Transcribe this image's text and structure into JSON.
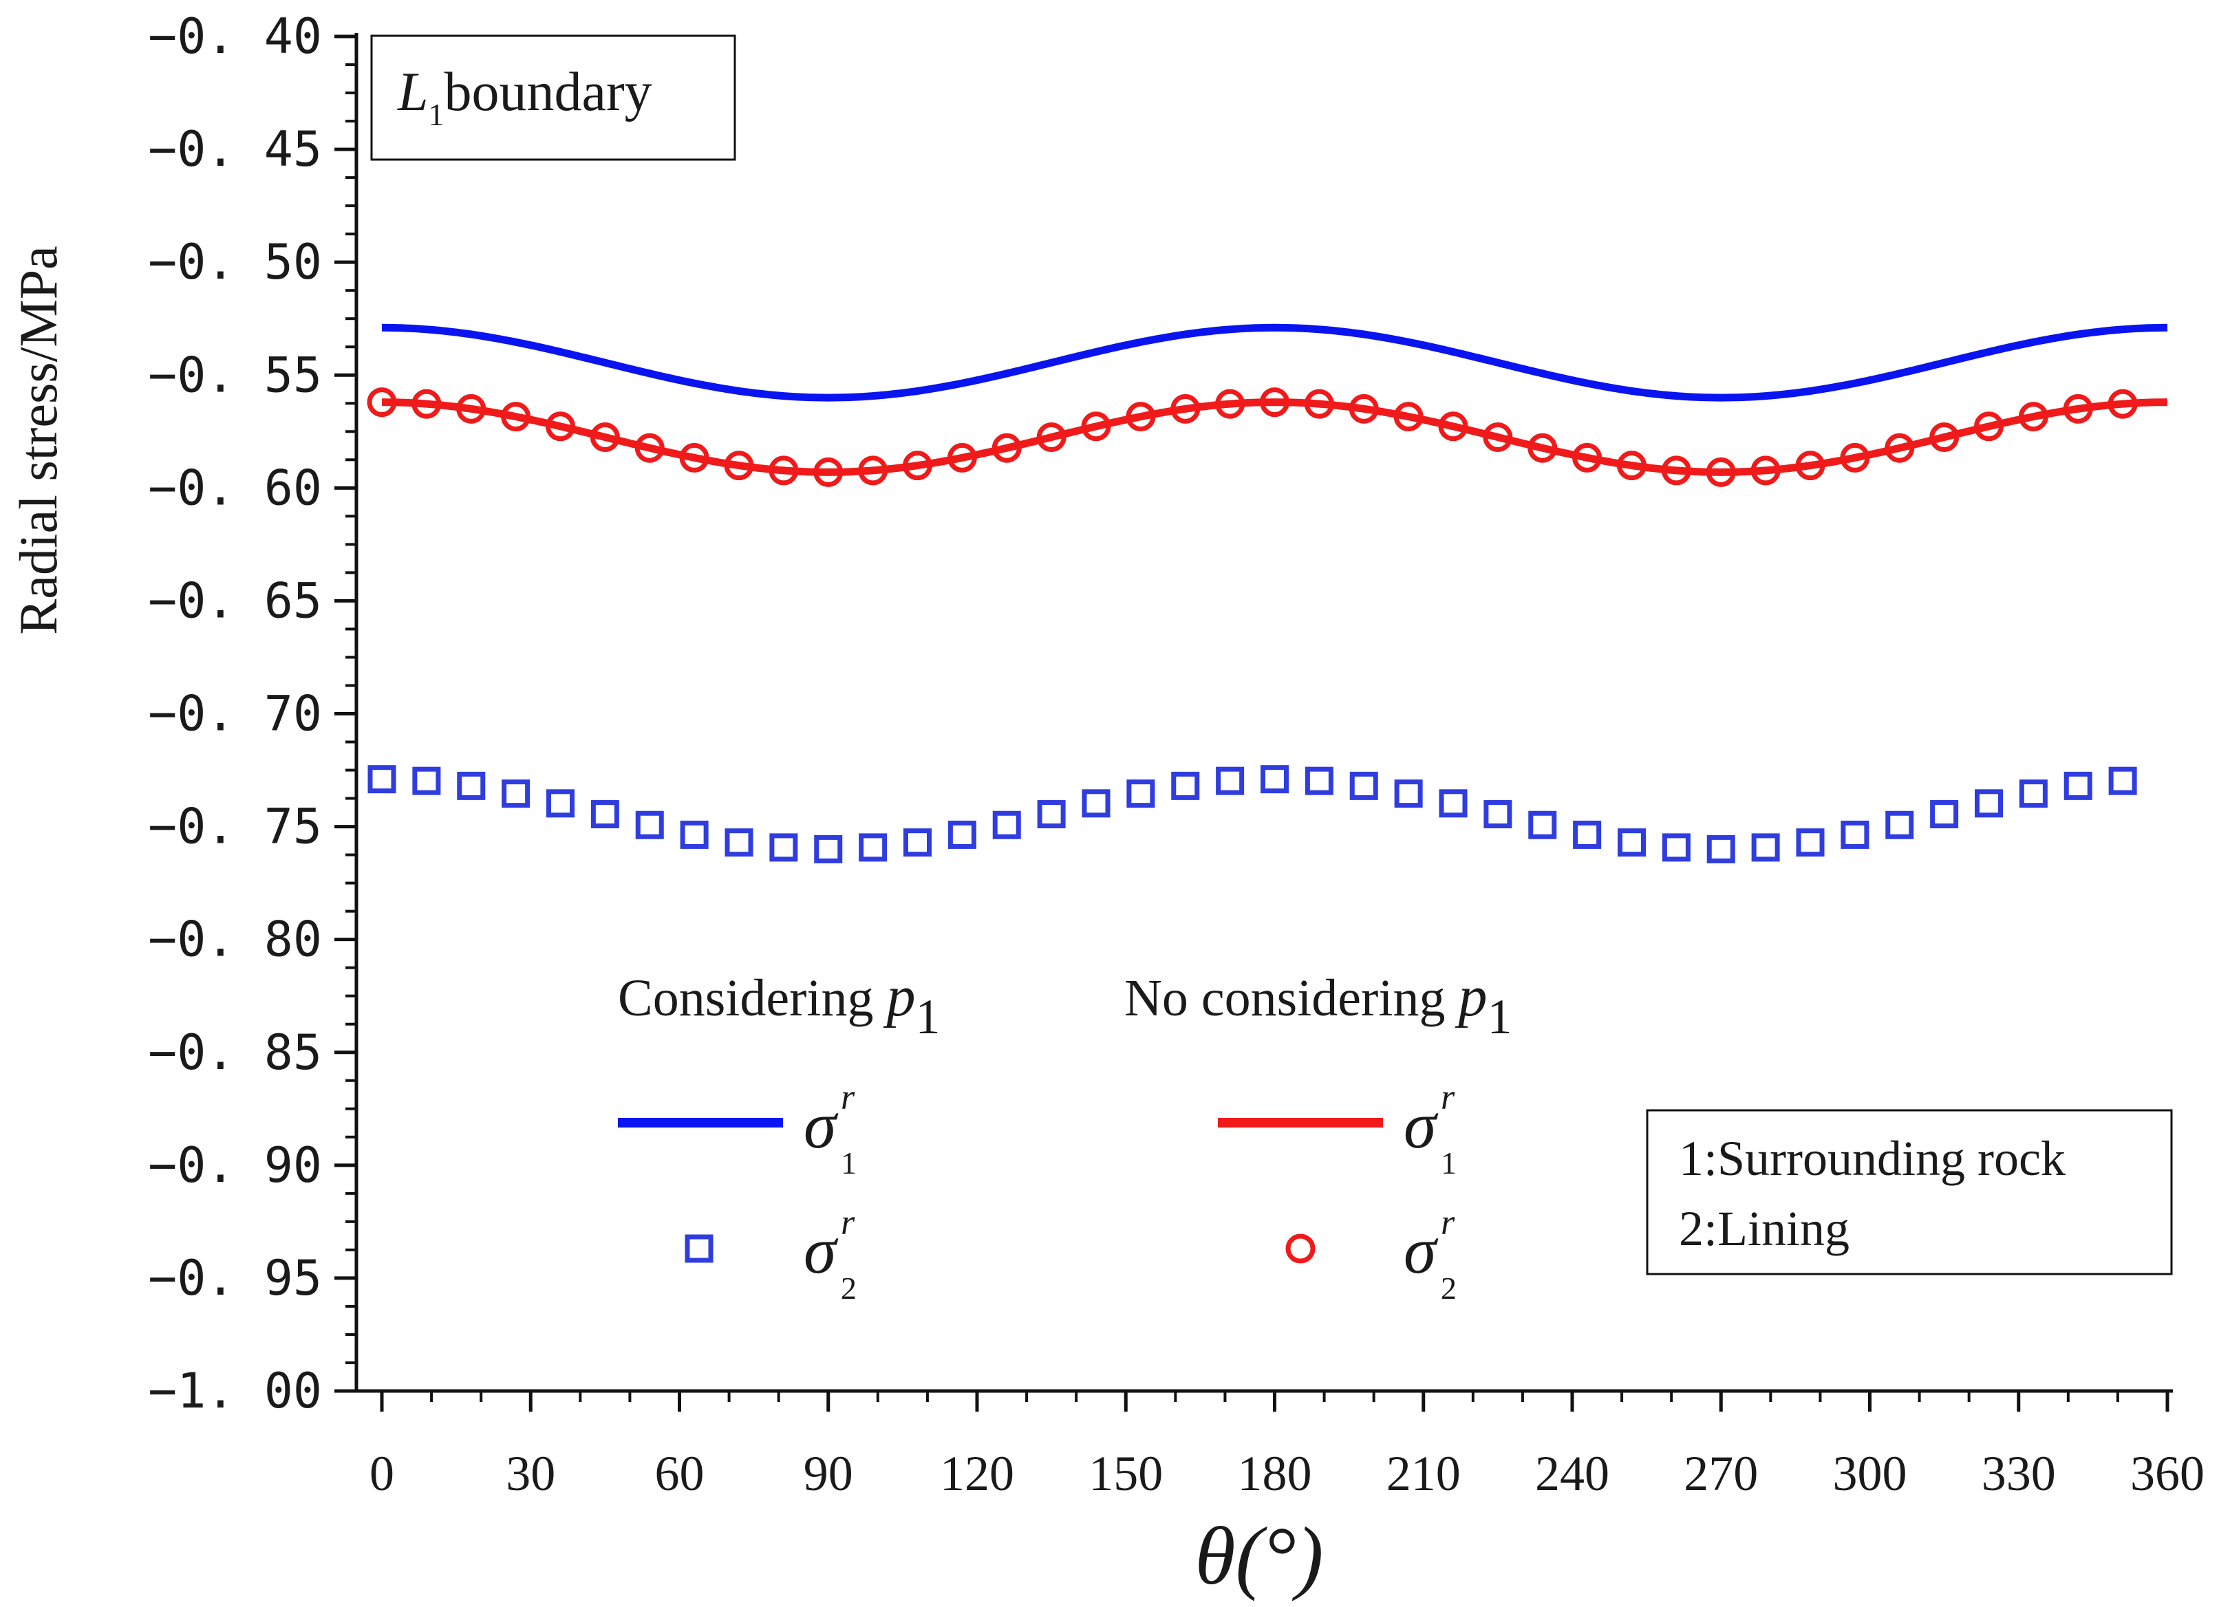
{
  "chart_data": {
    "type": "line",
    "title": "",
    "xlabel": "θ(°)",
    "ylabel": "Radial stress/MPa",
    "xlim": [
      0,
      360
    ],
    "ylim": [
      -1.0,
      -0.4
    ],
    "xticks": [
      0,
      30,
      60,
      90,
      120,
      150,
      180,
      210,
      240,
      270,
      300,
      330,
      360
    ],
    "xtick_labels": [
      "0",
      "30",
      "60",
      "90",
      "120",
      "150",
      "180",
      "210",
      "240",
      "270",
      "300",
      "330",
      "360"
    ],
    "yticks": [
      -0.4,
      -0.45,
      -0.5,
      -0.55,
      -0.6,
      -0.65,
      -0.7,
      -0.75,
      -0.8,
      -0.85,
      -0.9,
      -0.95,
      -1.0
    ],
    "ytick_labels": [
      "−0. 40",
      "−0. 45",
      "−0. 50",
      "−0. 55",
      "−0. 60",
      "−0. 65",
      "−0. 70",
      "−0. 75",
      "−0. 80",
      "−0. 85",
      "−0. 90",
      "−0. 95",
      "−1. 00"
    ],
    "annotation": {
      "italic": "L",
      "sub": "1",
      "text": "boundary"
    },
    "legend": {
      "group1_label": "Considering ",
      "group2_label": "No considering ",
      "param": "p",
      "param_sub": "1",
      "sigma": "σ",
      "sup": "r",
      "sub1": "1",
      "sub2": "2"
    },
    "note": {
      "line1": "1:Surrounding rock",
      "line2": "2:Lining"
    },
    "series": [
      {
        "name": "σ1r (Considering p1)",
        "style": "line",
        "color": "#0a14f0",
        "x_range": [
          0,
          360
        ],
        "mean": -0.5445,
        "amplitude": 0.0155
      },
      {
        "name": "σ2r (Considering p1)",
        "style": "square",
        "color": "#2f3de0",
        "x_start": 0,
        "x_step": 9.0,
        "count": 40,
        "mean": -0.7445,
        "amplitude": 0.0155
      },
      {
        "name": "σ1r (No considering p1)",
        "style": "line",
        "color": "#f01a1a",
        "x_range": [
          0,
          360
        ],
        "mean": -0.5775,
        "amplitude": 0.0155
      },
      {
        "name": "σ2r (No considering p1)",
        "style": "circle",
        "color": "#f01a1a",
        "x_start": 0,
        "x_step": 9.0,
        "count": 40,
        "mean": -0.5775,
        "amplitude": 0.0155
      }
    ]
  }
}
